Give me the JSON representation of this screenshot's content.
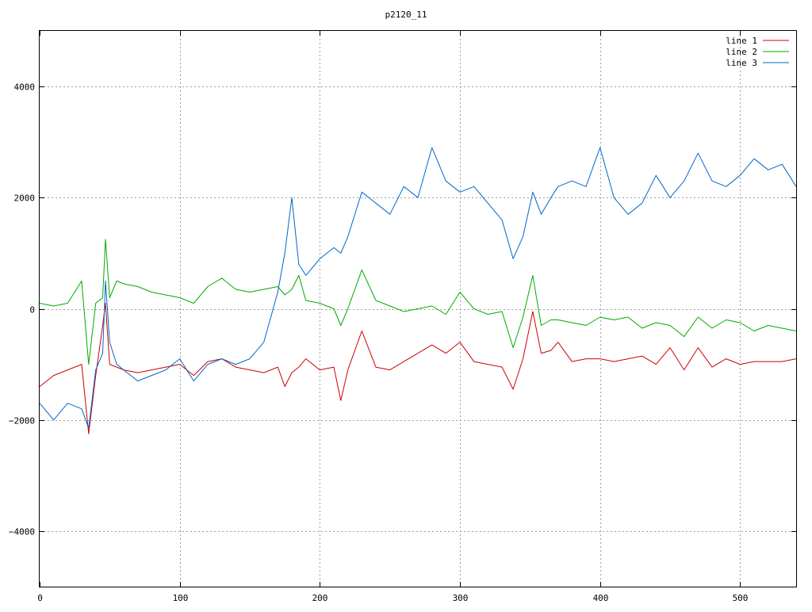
{
  "chart_data": {
    "type": "line",
    "title": "p2120_11",
    "xlabel": "",
    "ylabel": "",
    "xlim": [
      0,
      540
    ],
    "ylim": [
      -5000,
      5000
    ],
    "x_ticks": [
      0,
      100,
      200,
      300,
      400,
      500
    ],
    "y_ticks": [
      -4000,
      -2000,
      0,
      2000,
      4000
    ],
    "x_tick_labels": [
      "0",
      "100",
      "200",
      "300",
      "400",
      "500"
    ],
    "y_tick_labels": [
      "−4000",
      "−2000",
      "0",
      "2000",
      "4000"
    ],
    "grid": true,
    "legend_position": "top-right",
    "x": [
      0,
      10,
      20,
      30,
      35,
      40,
      45,
      47,
      50,
      55,
      60,
      70,
      80,
      90,
      100,
      110,
      120,
      130,
      140,
      150,
      160,
      170,
      175,
      180,
      185,
      190,
      200,
      210,
      215,
      220,
      230,
      240,
      250,
      260,
      270,
      280,
      290,
      300,
      310,
      320,
      330,
      338,
      345,
      352,
      358,
      365,
      370,
      380,
      390,
      400,
      410,
      420,
      430,
      440,
      450,
      460,
      470,
      480,
      490,
      500,
      510,
      520,
      530,
      540
    ],
    "series": [
      {
        "name": "line 1",
        "color": "#cc0000",
        "values": [
          -1400,
          -1200,
          -1100,
          -1000,
          -2250,
          -1200,
          -300,
          100,
          -1000,
          -1050,
          -1100,
          -1150,
          -1100,
          -1050,
          -1000,
          -1200,
          -950,
          -900,
          -1050,
          -1100,
          -1150,
          -1050,
          -1400,
          -1150,
          -1050,
          -900,
          -1100,
          -1050,
          -1650,
          -1100,
          -400,
          -1050,
          -1100,
          -950,
          -800,
          -650,
          -800,
          -600,
          -950,
          -1000,
          -1050,
          -1450,
          -900,
          -50,
          -800,
          -750,
          -600,
          -950,
          -900,
          -900,
          -950,
          -900,
          -850,
          -1000,
          -700,
          -1100,
          -700,
          -1050,
          -900,
          -1000,
          -950,
          -950,
          -950,
          -900
        ]
      },
      {
        "name": "line 2",
        "color": "#00aa00",
        "values": [
          100,
          50,
          100,
          500,
          -1000,
          100,
          200,
          1250,
          200,
          500,
          450,
          400,
          300,
          250,
          200,
          100,
          400,
          550,
          350,
          300,
          350,
          400,
          250,
          350,
          600,
          150,
          100,
          0,
          -300,
          0,
          700,
          150,
          50,
          -50,
          0,
          50,
          -100,
          300,
          0,
          -100,
          -50,
          -700,
          -150,
          600,
          -300,
          -200,
          -200,
          -250,
          -300,
          -150,
          -200,
          -150,
          -350,
          -250,
          -300,
          -500,
          -150,
          -350,
          -200,
          -250,
          -400,
          -300,
          -350,
          -400
        ]
      },
      {
        "name": "line 3",
        "color": "#0066cc",
        "values": [
          -1700,
          -2000,
          -1700,
          -1800,
          -2150,
          -1100,
          -800,
          500,
          -600,
          -1000,
          -1100,
          -1300,
          -1200,
          -1100,
          -900,
          -1300,
          -1000,
          -900,
          -1000,
          -900,
          -600,
          300,
          1000,
          2000,
          800,
          600,
          900,
          1100,
          1000,
          1300,
          2100,
          1900,
          1700,
          2200,
          2000,
          2900,
          2300,
          2100,
          2200,
          1900,
          1600,
          900,
          1300,
          2100,
          1700,
          2000,
          2200,
          2300,
          2200,
          2900,
          2000,
          1700,
          1900,
          2400,
          2000,
          2300,
          2800,
          2300,
          2200,
          2400,
          2700,
          2500,
          2600,
          2200
        ]
      }
    ]
  }
}
